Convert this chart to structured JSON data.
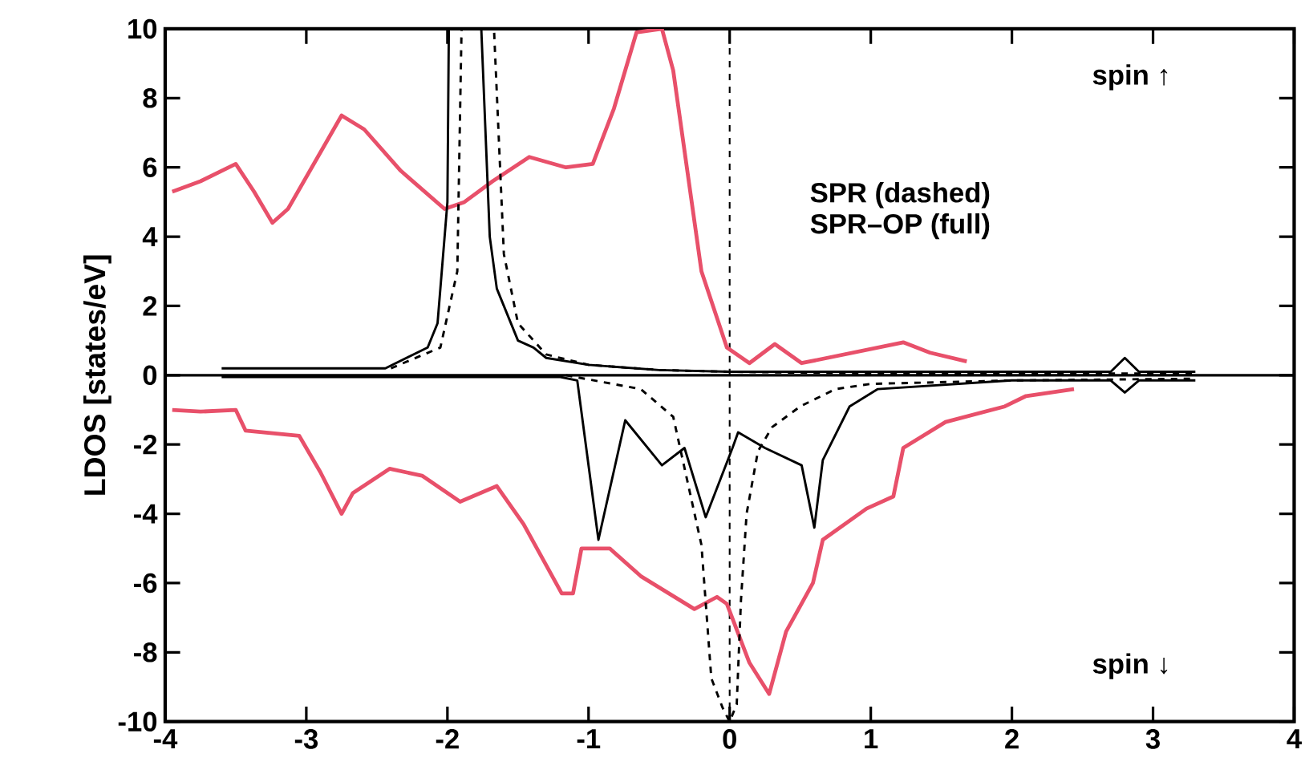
{
  "chart_data": {
    "type": "line",
    "ylabel": "LDOS [states/eV]",
    "xlim": [
      -4,
      4
    ],
    "ylim": [
      -10,
      10
    ],
    "xticks": [
      -4,
      -3,
      -2,
      -1,
      0,
      1,
      2,
      3,
      4
    ],
    "yticks": [
      -10,
      -8,
      -6,
      -4,
      -2,
      0,
      2,
      4,
      6,
      8,
      10
    ],
    "grid": false,
    "annotations": [
      "spin ↑",
      "SPR (dashed)",
      "SPR–OP (full)",
      "spin ↓"
    ],
    "ref_lines": [
      {
        "axis": "x",
        "value": 0,
        "line_style": "dashed",
        "color": "#000000"
      },
      {
        "axis": "y",
        "value": 0,
        "line_style": "solid",
        "color": "#000000"
      }
    ],
    "series": [
      {
        "color": "#e8506a",
        "line_style": "solid",
        "x": [
          -3.95,
          -3.75,
          -3.5,
          -3.37,
          -3.24,
          -3.13,
          -2.75,
          -2.59,
          -2.33,
          -2.02,
          -1.88,
          -1.68,
          -1.42,
          -1.16,
          -0.97,
          -0.82,
          -0.66,
          -0.48,
          -0.4,
          -0.2,
          -0.02,
          0.14,
          0.32,
          0.51,
          1.23,
          1.42,
          1.68
        ],
        "values": [
          5.3,
          5.6,
          6.1,
          5.3,
          4.4,
          4.8,
          7.5,
          7.1,
          5.9,
          4.8,
          5.0,
          5.6,
          6.3,
          6.0,
          6.1,
          7.7,
          9.9,
          10,
          8.8,
          3.0,
          0.8,
          0.35,
          0.9,
          0.35,
          0.95,
          0.65,
          0.4
        ]
      },
      {
        "color": "#e8506a",
        "line_style": "solid",
        "x": [
          -3.95,
          -3.75,
          -3.5,
          -3.43,
          -3.05,
          -2.9,
          -2.75,
          -2.67,
          -2.41,
          -2.18,
          -1.91,
          -1.65,
          -1.46,
          -1.19,
          -1.11,
          -1.05,
          -0.85,
          -0.63,
          -0.25,
          -0.09,
          -0.02,
          0.14,
          0.28,
          0.4,
          0.59,
          0.66,
          0.97,
          1.16,
          1.23,
          1.53,
          1.95,
          2.1,
          2.44
        ],
        "values": [
          -1.0,
          -1.05,
          -1.0,
          -1.6,
          -1.75,
          -2.8,
          -4.0,
          -3.4,
          -2.7,
          -2.9,
          -3.65,
          -3.2,
          -4.3,
          -6.3,
          -6.3,
          -5.0,
          -5.0,
          -5.8,
          -6.75,
          -6.4,
          -6.6,
          -8.3,
          -9.2,
          -7.4,
          -6.0,
          -4.75,
          -3.85,
          -3.5,
          -2.1,
          -1.35,
          -0.9,
          -0.6,
          -0.4
        ]
      },
      {
        "color": "#000000",
        "line_style": "solid",
        "x": [
          -3.6,
          -2.5,
          -2.44,
          -2.14,
          -2.07,
          -2.0,
          -1.99,
          -1.76,
          -1.7,
          -1.65,
          -1.5,
          -1.39,
          -1.3,
          -1.0,
          -0.5,
          0,
          1,
          2,
          2.7,
          2.8,
          2.9,
          3.3
        ],
        "values": [
          0.2,
          0.2,
          0.2,
          0.8,
          1.5,
          5,
          10,
          10,
          4,
          2.5,
          1.0,
          0.8,
          0.5,
          0.3,
          0.15,
          0.1,
          0.1,
          0.1,
          0.1,
          0.5,
          0.1,
          0.1
        ]
      },
      {
        "color": "#000000",
        "line_style": "dashed",
        "x": [
          -2.4,
          -2.05,
          -1.93,
          -1.9,
          -1.67,
          -1.6,
          -1.5,
          -1.3,
          -1.0,
          -0.5,
          0,
          1,
          2,
          3.3
        ],
        "values": [
          0.2,
          0.8,
          3,
          10,
          10,
          3.5,
          1.5,
          0.6,
          0.3,
          0.15,
          0.1,
          0.05,
          0.05,
          0.05
        ]
      },
      {
        "color": "#000000",
        "line_style": "solid",
        "x": [
          -3.6,
          -2,
          -1.2,
          -1.08,
          -0.93,
          -0.74,
          -0.48,
          -0.32,
          -0.17,
          0.02,
          0.06,
          0.25,
          0.51,
          0.6,
          0.66,
          0.85,
          1.05,
          2,
          2.7,
          2.8,
          2.9,
          3.3
        ],
        "values": [
          -0.05,
          -0.05,
          -0.05,
          -0.15,
          -4.75,
          -1.3,
          -2.6,
          -2.1,
          -4.1,
          -2.1,
          -1.65,
          -2.1,
          -2.6,
          -4.4,
          -2.45,
          -0.9,
          -0.4,
          -0.15,
          -0.15,
          -0.5,
          -0.15,
          -0.15
        ]
      },
      {
        "color": "#000000",
        "line_style": "dashed",
        "x": [
          -1.16,
          -0.63,
          -0.4,
          -0.2,
          -0.13,
          -0.05,
          0.0,
          0.05,
          0.08,
          0.12,
          0.2,
          0.3,
          0.5,
          0.75,
          1.0,
          2,
          3.3
        ],
        "values": [
          0,
          -0.4,
          -1.2,
          -4.9,
          -8.75,
          -9.6,
          -10,
          -9.5,
          -6.5,
          -4,
          -2.2,
          -1.5,
          -0.9,
          -0.4,
          -0.25,
          -0.15,
          -0.1
        ]
      }
    ]
  }
}
